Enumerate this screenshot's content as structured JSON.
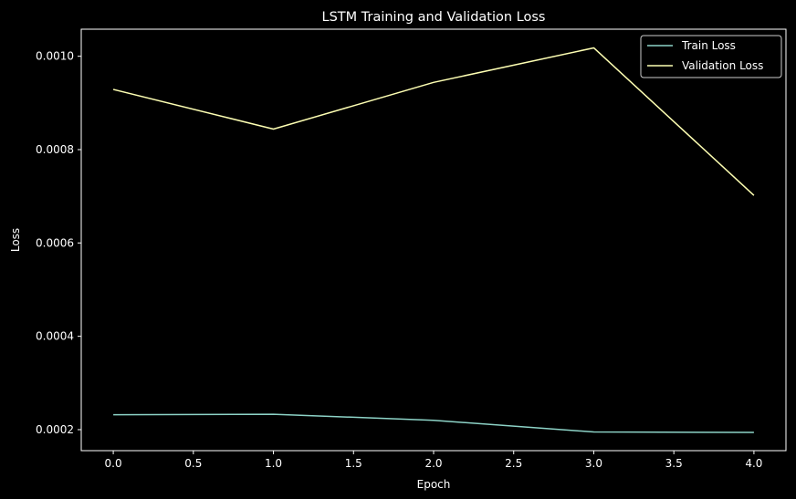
{
  "chart_data": {
    "type": "line",
    "title": "LSTM Training and Validation Loss",
    "xlabel": "Epoch",
    "ylabel": "Loss",
    "x": [
      0,
      1,
      2,
      3,
      4
    ],
    "xlim": [
      -0.2,
      4.2
    ],
    "ylim": [
      0.000155,
      0.001058
    ],
    "xticks": [
      0.0,
      0.5,
      1.0,
      1.5,
      2.0,
      2.5,
      3.0,
      3.5,
      4.0
    ],
    "xtick_labels": [
      "0.0",
      "0.5",
      "1.0",
      "1.5",
      "2.0",
      "2.5",
      "3.0",
      "3.5",
      "4.0"
    ],
    "yticks": [
      0.0002,
      0.0004,
      0.0006,
      0.0008,
      0.001
    ],
    "ytick_labels": [
      "0.0002",
      "0.0004",
      "0.0006",
      "0.0008",
      "0.0010"
    ],
    "grid": false,
    "legend_position": "top-right",
    "background": "#000000",
    "foreground": "#ffffff",
    "series": [
      {
        "name": "Train Loss",
        "color": "#8dd3c7",
        "values": [
          0.000232,
          0.000233,
          0.00022,
          0.000195,
          0.000194
        ]
      },
      {
        "name": "Validation Loss",
        "color": "#feffb3",
        "values": [
          0.000929,
          0.000844,
          0.000944,
          0.001018,
          0.000702
        ]
      }
    ]
  }
}
